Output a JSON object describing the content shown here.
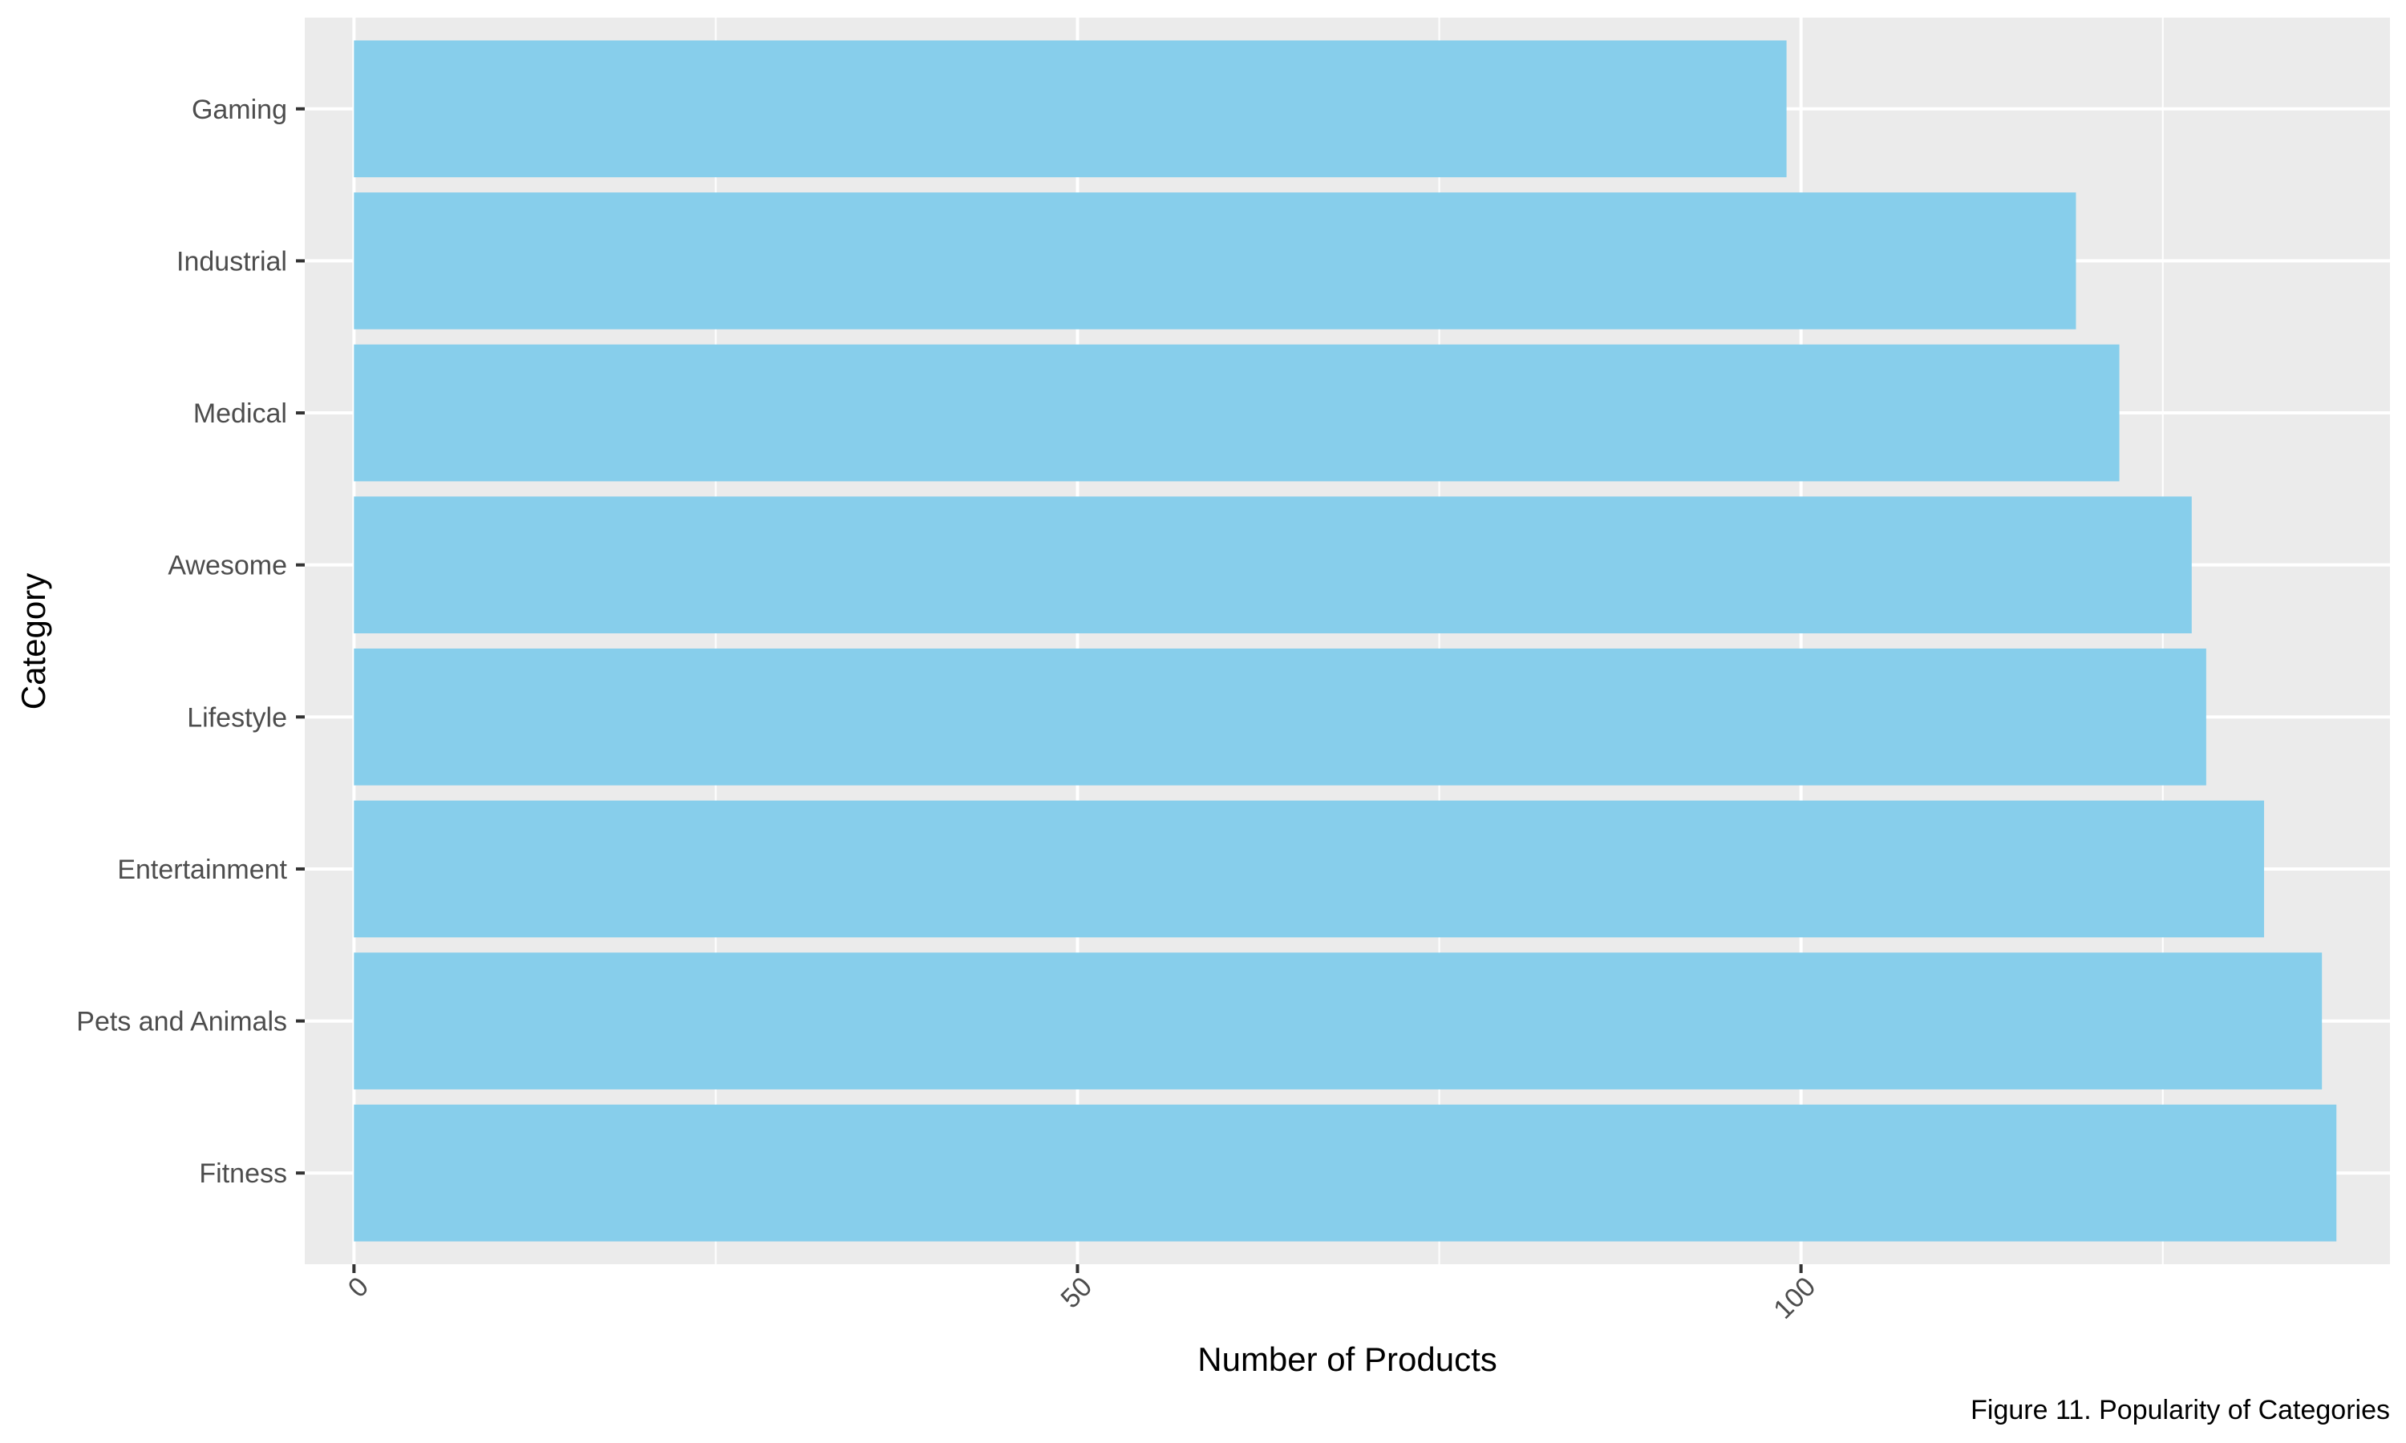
{
  "chart_data": {
    "type": "bar",
    "orientation": "horizontal",
    "categories": [
      "Gaming",
      "Industrial",
      "Medical",
      "Awesome",
      "Lifestyle",
      "Entertainment",
      "Pets and Animals",
      "Fitness"
    ],
    "values": [
      99,
      119,
      122,
      127,
      128,
      132,
      136,
      137
    ],
    "xlabel": "Number of Products",
    "ylabel": "Category",
    "xlim": [
      -3.4,
      140.7
    ],
    "x_ticks": [
      0,
      50,
      100
    ],
    "x_tick_labels": [
      "0",
      "50",
      "100"
    ],
    "x_tick_rotation": "45deg",
    "grid": true,
    "caption": "Figure 11. Popularity of Categories"
  },
  "colors": {
    "bar_fill": "#87CEEB",
    "panel_background": "#EBEBEB",
    "gridline": "#FFFFFF",
    "tick_text": "#4D4D4D",
    "tick_mark": "#333333",
    "title_text": "#000000"
  }
}
